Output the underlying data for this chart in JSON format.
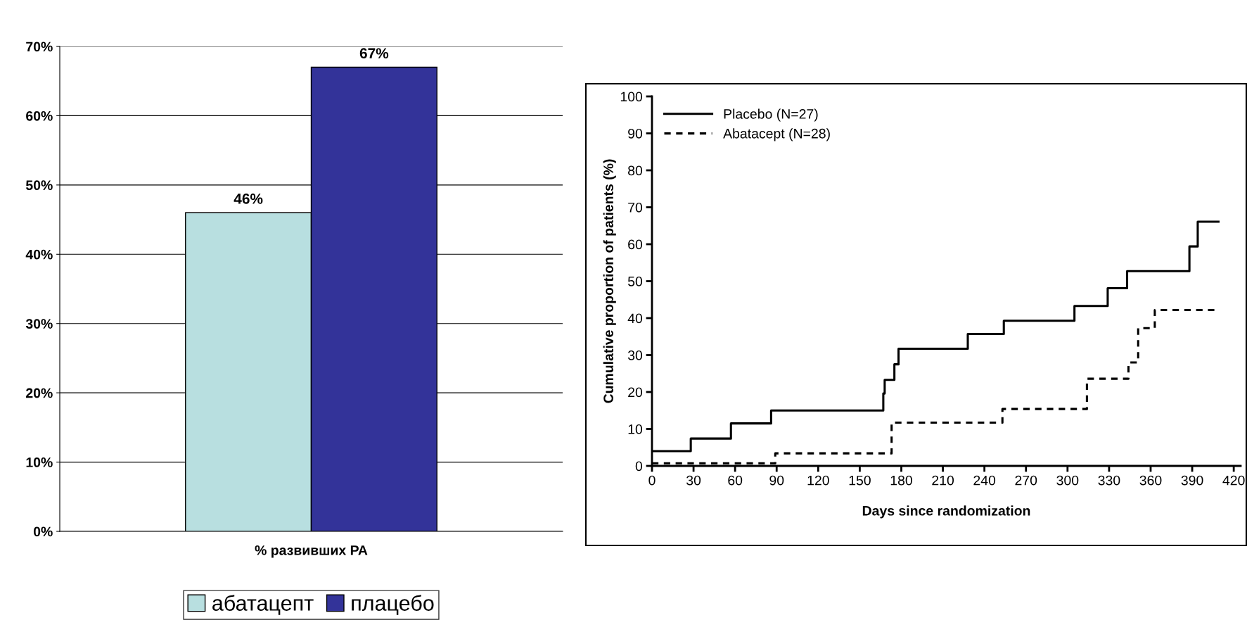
{
  "chart_data": [
    {
      "type": "bar",
      "categories": [
        "% развивших РА"
      ],
      "ylim": [
        0,
        70
      ],
      "yticks": [
        {
          "value": 0,
          "label": "0%"
        },
        {
          "value": 10,
          "label": "10%"
        },
        {
          "value": 20,
          "label": "20%"
        },
        {
          "value": 30,
          "label": "30%"
        },
        {
          "value": 40,
          "label": "40%"
        },
        {
          "value": 50,
          "label": "50%"
        },
        {
          "value": 60,
          "label": "60%"
        },
        {
          "value": 70,
          "label": "70%"
        }
      ],
      "grid": "y",
      "legend": "bottom",
      "series": [
        {
          "name": "абатацепт",
          "color": "#b8dfe0",
          "values": [
            46
          ],
          "value_labels": [
            "46%"
          ]
        },
        {
          "name": "плацебо",
          "color": "#333399",
          "values": [
            67
          ],
          "value_labels": [
            "67%"
          ]
        }
      ]
    },
    {
      "type": "step",
      "xlabel": "Days since randomization",
      "ylabel": "Cumulative proportion of patients (%)",
      "xlim": [
        0,
        425
      ],
      "xticks": [
        0,
        30,
        60,
        90,
        120,
        150,
        180,
        210,
        240,
        270,
        300,
        330,
        360,
        390,
        420
      ],
      "ylim": [
        0,
        100
      ],
      "yticks": [
        0,
        10,
        20,
        30,
        40,
        50,
        60,
        70,
        80,
        90,
        100
      ],
      "legend": "top left",
      "series": [
        {
          "name": "Placebo (N=27)",
          "color": "#000000",
          "line_style": "solid",
          "x": [
            0,
            28,
            57,
            86,
            167,
            168,
            175,
            178,
            228,
            254,
            305,
            329,
            343,
            388,
            394,
            409
          ],
          "values": [
            4,
            7.4,
            11.5,
            15,
            19.6,
            23.3,
            27.5,
            31.7,
            35.7,
            39.3,
            43.3,
            48.1,
            52.7,
            59.4,
            66.1,
            66.1
          ]
        },
        {
          "name": "Abatacept (N=28)",
          "color": "#000000",
          "line_style": "dashed",
          "x": [
            0,
            89,
            173,
            253,
            314,
            344,
            351,
            363,
            406
          ],
          "values": [
            0.7,
            3.4,
            11.7,
            15.4,
            23.6,
            28,
            37.3,
            42.2,
            42.2
          ]
        }
      ]
    }
  ]
}
